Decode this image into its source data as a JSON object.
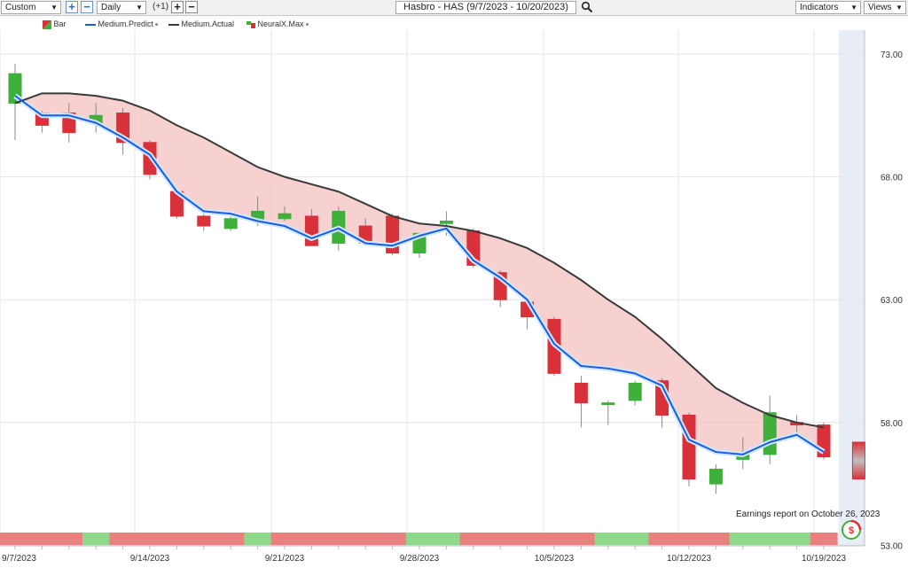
{
  "toolbar": {
    "range_select": "Custom",
    "interval_select": "Daily",
    "offset_label": "(+1)",
    "title": "Hasbro - HAS (9/7/2023 - 10/20/2023)",
    "indicators_label": "Indicators",
    "views_label": "Views"
  },
  "legend": {
    "bar": "Bar",
    "predict": "Medium.Predict",
    "actual": "Medium.Actual",
    "neuralx": "NeuralX.Max"
  },
  "earnings_note": "Earnings report on October 26, 2023",
  "colors": {
    "up": "#3fb03a",
    "down": "#d9313a",
    "predict": "#1a5de0",
    "actual": "#3a3a3a",
    "fill": "#f6c8c8",
    "strip_red": "#e98080",
    "strip_green": "#8fd98a",
    "future_band": "#e6edf6"
  },
  "chart_data": {
    "type": "candlestick",
    "title": "Hasbro - HAS (9/7/2023 - 10/20/2023)",
    "ylim": [
      53,
      74
    ],
    "yticks": [
      "73.00",
      "68.00",
      "63.00",
      "58.00",
      "53.00"
    ],
    "ytick_values": [
      73,
      68,
      63,
      58,
      53
    ],
    "xtick_labels": [
      "9/7/2023",
      "9/14/2023",
      "9/21/2023",
      "9/28/2023",
      "10/5/2023",
      "10/12/2023",
      "10/19/2023"
    ],
    "xtick_index": [
      0,
      5,
      10,
      15,
      20,
      25,
      30
    ],
    "candles": [
      {
        "o": 71.0,
        "h": 72.6,
        "l": 69.5,
        "c": 72.2
      },
      {
        "o": 70.6,
        "h": 70.7,
        "l": 69.8,
        "c": 70.1
      },
      {
        "o": 70.6,
        "h": 71.0,
        "l": 69.4,
        "c": 69.8
      },
      {
        "o": 70.2,
        "h": 71.0,
        "l": 69.8,
        "c": 70.5
      },
      {
        "o": 70.6,
        "h": 70.8,
        "l": 68.9,
        "c": 69.4
      },
      {
        "o": 69.4,
        "h": 69.5,
        "l": 67.9,
        "c": 68.1
      },
      {
        "o": 67.4,
        "h": 67.5,
        "l": 66.3,
        "c": 66.4
      },
      {
        "o": 66.4,
        "h": 66.5,
        "l": 65.8,
        "c": 66.0
      },
      {
        "o": 65.9,
        "h": 66.4,
        "l": 65.8,
        "c": 66.3
      },
      {
        "o": 66.2,
        "h": 67.2,
        "l": 66.0,
        "c": 66.6
      },
      {
        "o": 66.3,
        "h": 66.8,
        "l": 66.2,
        "c": 66.5
      },
      {
        "o": 66.4,
        "h": 66.7,
        "l": 65.2,
        "c": 65.2
      },
      {
        "o": 65.3,
        "h": 66.8,
        "l": 65.0,
        "c": 66.6
      },
      {
        "o": 66.0,
        "h": 66.3,
        "l": 65.2,
        "c": 65.3
      },
      {
        "o": 66.4,
        "h": 66.5,
        "l": 64.8,
        "c": 64.9
      },
      {
        "o": 64.9,
        "h": 65.5,
        "l": 64.7,
        "c": 65.7
      },
      {
        "o": 66.1,
        "h": 66.6,
        "l": 65.6,
        "c": 66.2
      },
      {
        "o": 65.8,
        "h": 65.9,
        "l": 64.3,
        "c": 64.4
      },
      {
        "o": 64.1,
        "h": 64.2,
        "l": 62.7,
        "c": 63.0
      },
      {
        "o": 62.9,
        "h": 63.0,
        "l": 61.8,
        "c": 62.3
      },
      {
        "o": 62.2,
        "h": 62.3,
        "l": 59.9,
        "c": 60.0
      },
      {
        "o": 59.6,
        "h": 59.9,
        "l": 57.8,
        "c": 58.8
      },
      {
        "o": 58.8,
        "h": 58.9,
        "l": 57.9,
        "c": 58.8
      },
      {
        "o": 58.9,
        "h": 59.7,
        "l": 58.7,
        "c": 59.6
      },
      {
        "o": 59.7,
        "h": 59.8,
        "l": 57.8,
        "c": 58.3
      },
      {
        "o": 58.3,
        "h": 58.4,
        "l": 55.4,
        "c": 55.7
      },
      {
        "o": 55.5,
        "h": 56.3,
        "l": 55.1,
        "c": 56.1
      },
      {
        "o": 56.5,
        "h": 57.4,
        "l": 56.1,
        "c": 56.8
      },
      {
        "o": 56.7,
        "h": 59.1,
        "l": 56.3,
        "c": 58.4
      },
      {
        "o": 58.0,
        "h": 58.3,
        "l": 57.6,
        "c": 57.9
      },
      {
        "o": 57.9,
        "h": 58.0,
        "l": 56.5,
        "c": 56.6
      }
    ],
    "medium_predict": [
      71.3,
      70.5,
      70.5,
      70.2,
      69.6,
      68.9,
      67.4,
      66.6,
      66.5,
      66.2,
      66.0,
      65.5,
      65.9,
      65.3,
      65.2,
      65.6,
      65.9,
      64.6,
      63.9,
      63.0,
      61.2,
      60.3,
      60.2,
      60.0,
      59.5,
      57.3,
      56.8,
      56.7,
      57.2,
      57.5,
      56.8
    ],
    "medium_actual": [
      71.0,
      71.4,
      71.4,
      71.3,
      71.1,
      70.7,
      70.1,
      69.6,
      69.0,
      68.4,
      68.0,
      67.7,
      67.4,
      66.9,
      66.4,
      66.1,
      66.0,
      65.8,
      65.5,
      65.1,
      64.5,
      63.8,
      63.0,
      62.3,
      61.4,
      60.4,
      59.4,
      58.8,
      58.3,
      58.0,
      57.8
    ],
    "forecast_bar": {
      "top": 57.2,
      "bottom": 55.7
    },
    "strip": [
      "red",
      "red",
      "red",
      "green",
      "red",
      "red",
      "red",
      "red",
      "red",
      "green",
      "red",
      "red",
      "red",
      "red",
      "red",
      "green",
      "green",
      "red",
      "red",
      "red",
      "red",
      "red",
      "green",
      "green",
      "red",
      "red",
      "red",
      "green",
      "green",
      "green",
      "red"
    ]
  }
}
